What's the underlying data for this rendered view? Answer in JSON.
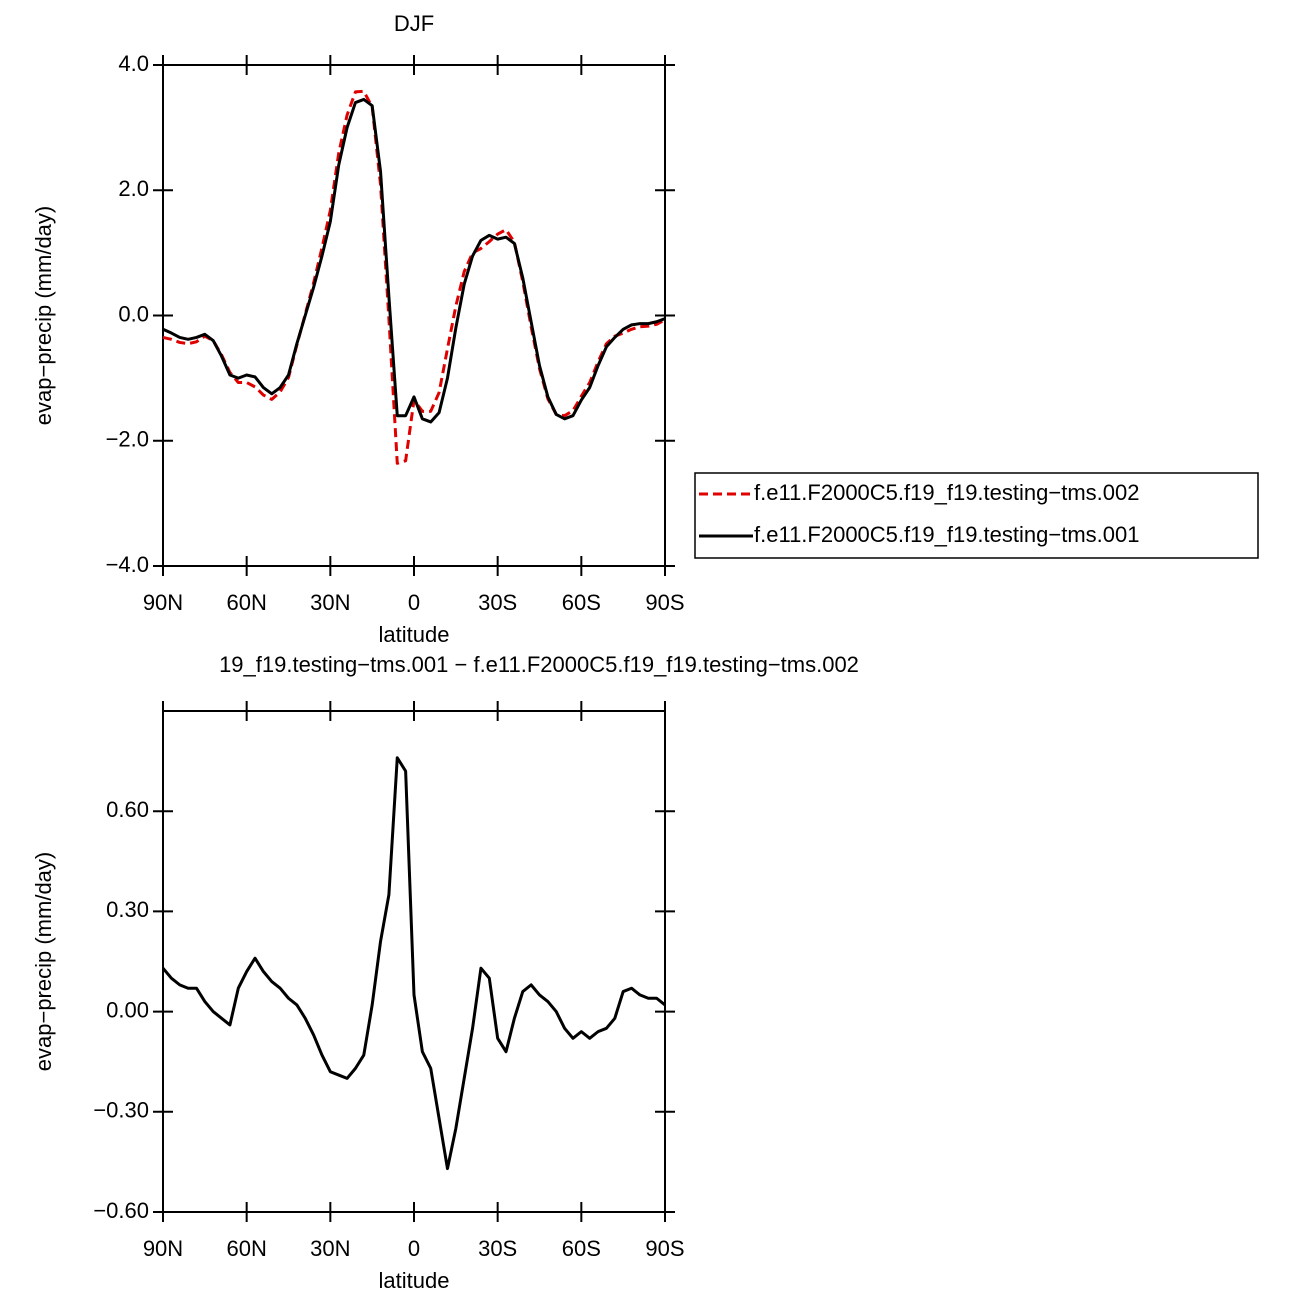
{
  "chart_data": [
    {
      "type": "line",
      "title": "DJF",
      "ylabel": "evap−precip (mm/day)",
      "xlabel": "latitude",
      "x": [
        90,
        87,
        84,
        81,
        78,
        75,
        72,
        69,
        66,
        63,
        60,
        57,
        54,
        51,
        48,
        45,
        42,
        39,
        36,
        33,
        30,
        27,
        24,
        21,
        18,
        15,
        12,
        9,
        6,
        3,
        0,
        -3,
        -6,
        -9,
        -12,
        -15,
        -18,
        -21,
        -24,
        -27,
        -30,
        -33,
        -36,
        -39,
        -42,
        -45,
        -48,
        -51,
        -54,
        -57,
        -60,
        -63,
        -66,
        -69,
        -72,
        -75,
        -78,
        -81,
        -84,
        -87,
        -90
      ],
      "xlim": [
        90,
        -90
      ],
      "xticks": [
        {
          "value": 90,
          "label": "90N"
        },
        {
          "value": 60,
          "label": "60N"
        },
        {
          "value": 30,
          "label": "30N"
        },
        0,
        {
          "value": -30,
          "label": "30S"
        },
        {
          "value": -60,
          "label": "60S"
        },
        {
          "value": -90,
          "label": "90S"
        }
      ],
      "ylim": [
        -4,
        4
      ],
      "yticks": [
        {
          "value": 4,
          "label": "4.0"
        },
        {
          "value": 2,
          "label": "2.0"
        },
        {
          "value": 0,
          "label": "0.0"
        },
        {
          "value": -2,
          "label": "−2.0"
        },
        {
          "value": -4,
          "label": "−4.0"
        }
      ],
      "legend": "right",
      "series": [
        {
          "name": "f.e11.F2000C5.f19_f19.testing−tms.002",
          "color": "#e00000",
          "linestyle": "dashed",
          "values": [
            -0.35,
            -0.38,
            -0.43,
            -0.45,
            -0.42,
            -0.33,
            -0.4,
            -0.63,
            -0.91,
            -1.07,
            -1.07,
            -1.14,
            -1.27,
            -1.34,
            -1.22,
            -0.99,
            -0.47,
            0.02,
            0.52,
            1.08,
            1.68,
            2.59,
            3.2,
            3.57,
            3.58,
            3.33,
            2.09,
            -0.05,
            -2.36,
            -2.32,
            -1.35,
            -1.53,
            -1.53,
            -1.23,
            -0.53,
            0.15,
            0.7,
            1.0,
            1.07,
            1.18,
            1.3,
            1.37,
            1.17,
            0.54,
            -0.18,
            -0.85,
            -1.33,
            -1.58,
            -1.6,
            -1.52,
            -1.29,
            -1.07,
            -0.74,
            -0.45,
            -0.33,
            -0.28,
            -0.22,
            -0.18,
            -0.17,
            -0.14,
            -0.07
          ]
        },
        {
          "name": "f.e11.F2000C5.f19_f19.testing−tms.001",
          "color": "#000000",
          "linestyle": "solid",
          "values": [
            -0.22,
            -0.28,
            -0.35,
            -0.38,
            -0.35,
            -0.3,
            -0.4,
            -0.65,
            -0.95,
            -1.0,
            -0.95,
            -0.98,
            -1.15,
            -1.25,
            -1.15,
            -0.95,
            -0.45,
            0.0,
            0.45,
            0.95,
            1.5,
            2.4,
            3.0,
            3.4,
            3.45,
            3.35,
            2.3,
            0.3,
            -1.6,
            -1.6,
            -1.3,
            -1.65,
            -1.7,
            -1.55,
            -1.0,
            -0.2,
            0.5,
            0.95,
            1.2,
            1.28,
            1.22,
            1.25,
            1.15,
            0.6,
            -0.1,
            -0.8,
            -1.3,
            -1.58,
            -1.65,
            -1.6,
            -1.35,
            -1.15,
            -0.8,
            -0.5,
            -0.35,
            -0.22,
            -0.15,
            -0.13,
            -0.13,
            -0.1,
            -0.05
          ]
        }
      ]
    },
    {
      "type": "line",
      "title": "19_f19.testing−tms.001 − f.e11.F2000C5.f19_f19.testing−tms.002",
      "ylabel": "evap−precip (mm/day)",
      "xlabel": "latitude",
      "x": [
        90,
        87,
        84,
        81,
        78,
        75,
        72,
        69,
        66,
        63,
        60,
        57,
        54,
        51,
        48,
        45,
        42,
        39,
        36,
        33,
        30,
        27,
        24,
        21,
        18,
        15,
        12,
        9,
        6,
        3,
        0,
        -3,
        -6,
        -9,
        -12,
        -15,
        -18,
        -21,
        -24,
        -27,
        -30,
        -33,
        -36,
        -39,
        -42,
        -45,
        -48,
        -51,
        -54,
        -57,
        -60,
        -63,
        -66,
        -69,
        -72,
        -75,
        -78,
        -81,
        -84,
        -87,
        -90
      ],
      "xlim": [
        90,
        -90
      ],
      "xticks": [
        {
          "value": 90,
          "label": "90N"
        },
        {
          "value": 60,
          "label": "60N"
        },
        {
          "value": 30,
          "label": "30N"
        },
        0,
        {
          "value": -30,
          "label": "30S"
        },
        {
          "value": -60,
          "label": "60S"
        },
        {
          "value": -90,
          "label": "90S"
        }
      ],
      "ylim": [
        -0.6,
        0.9
      ],
      "yticks": [
        {
          "value": 0.6,
          "label": "0.60"
        },
        {
          "value": 0.3,
          "label": "0.30"
        },
        {
          "value": 0,
          "label": "0.00"
        },
        {
          "value": -0.3,
          "label": "−0.30"
        },
        {
          "value": -0.6,
          "label": "−0.60"
        }
      ],
      "color": "#000000",
      "linestyle": "solid",
      "values": [
        0.13,
        0.1,
        0.08,
        0.07,
        0.07,
        0.03,
        0.0,
        -0.02,
        -0.04,
        0.07,
        0.12,
        0.16,
        0.12,
        0.09,
        0.07,
        0.04,
        0.02,
        -0.02,
        -0.07,
        -0.13,
        -0.18,
        -0.19,
        -0.2,
        -0.17,
        -0.13,
        0.02,
        0.21,
        0.35,
        0.76,
        0.72,
        0.05,
        -0.12,
        -0.17,
        -0.32,
        -0.47,
        -0.35,
        -0.2,
        -0.05,
        0.13,
        0.1,
        -0.08,
        -0.12,
        -0.02,
        0.06,
        0.08,
        0.05,
        0.03,
        0.0,
        -0.05,
        -0.08,
        -0.06,
        -0.08,
        -0.06,
        -0.05,
        -0.02,
        0.06,
        0.07,
        0.05,
        0.04,
        0.04,
        0.02
      ]
    }
  ]
}
